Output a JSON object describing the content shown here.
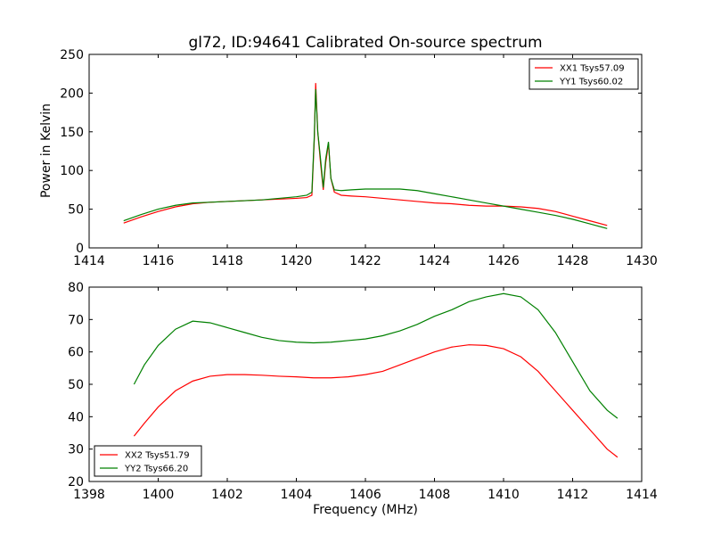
{
  "chart_data": [
    {
      "type": "line",
      "title": "gl72, ID:94641 Calibrated On-source spectrum",
      "xlabel": "",
      "ylabel": "Power in Kelvin",
      "xlim": [
        1414,
        1430
      ],
      "ylim": [
        0,
        250
      ],
      "xticks": [
        1414,
        1416,
        1418,
        1420,
        1422,
        1424,
        1426,
        1428,
        1430
      ],
      "yticks": [
        0,
        50,
        100,
        150,
        200,
        250
      ],
      "legend_position": "top-right",
      "series": [
        {
          "name": "XX1 Tsys57.09",
          "color": "#ff0000",
          "x": [
            1415.0,
            1415.5,
            1416.0,
            1416.5,
            1417.0,
            1417.5,
            1418.0,
            1418.5,
            1419.0,
            1419.5,
            1420.0,
            1420.3,
            1420.45,
            1420.52,
            1420.56,
            1420.62,
            1420.7,
            1420.78,
            1420.85,
            1420.93,
            1421.0,
            1421.1,
            1421.3,
            1421.6,
            1422.0,
            1422.5,
            1423.0,
            1423.5,
            1424.0,
            1424.5,
            1425.0,
            1425.5,
            1426.0,
            1426.5,
            1427.0,
            1427.5,
            1428.0,
            1428.5,
            1429.0
          ],
          "y": [
            32,
            40,
            47,
            53,
            57,
            59,
            60,
            61,
            62,
            63,
            64,
            65,
            68,
            140,
            213,
            150,
            110,
            75,
            110,
            135,
            90,
            72,
            68,
            67,
            66,
            64,
            62,
            60,
            58,
            57,
            55,
            54,
            54,
            53,
            51,
            47,
            41,
            35,
            29
          ]
        },
        {
          "name": "YY1 Tsys60.02",
          "color": "#008000",
          "x": [
            1415.0,
            1415.5,
            1416.0,
            1416.5,
            1417.0,
            1417.5,
            1418.0,
            1418.5,
            1419.0,
            1419.5,
            1420.0,
            1420.3,
            1420.45,
            1420.52,
            1420.56,
            1420.62,
            1420.7,
            1420.78,
            1420.85,
            1420.93,
            1421.0,
            1421.1,
            1421.3,
            1421.6,
            1422.0,
            1422.5,
            1423.0,
            1423.5,
            1424.0,
            1424.5,
            1425.0,
            1425.5,
            1426.0,
            1426.5,
            1427.0,
            1427.5,
            1428.0,
            1428.5,
            1429.0
          ],
          "y": [
            35,
            43,
            50,
            55,
            58,
            59,
            60,
            61,
            62,
            64,
            66,
            68,
            72,
            145,
            205,
            150,
            115,
            78,
            115,
            137,
            90,
            75,
            74,
            75,
            76,
            76,
            76,
            74,
            70,
            66,
            62,
            58,
            54,
            50,
            46,
            42,
            37,
            31,
            25
          ]
        }
      ]
    },
    {
      "type": "line",
      "title": "",
      "xlabel": "Frequency (MHz)",
      "ylabel": "",
      "xlim": [
        1398,
        1414
      ],
      "ylim": [
        20,
        80
      ],
      "xticks": [
        1398,
        1400,
        1402,
        1404,
        1406,
        1408,
        1410,
        1412,
        1414
      ],
      "yticks": [
        20,
        30,
        40,
        50,
        60,
        70,
        80
      ],
      "legend_position": "bottom-left",
      "series": [
        {
          "name": "XX2 Tsys51.79",
          "color": "#ff0000",
          "x": [
            1399.3,
            1399.6,
            1400.0,
            1400.5,
            1401.0,
            1401.5,
            1402.0,
            1402.5,
            1403.0,
            1403.5,
            1404.0,
            1404.5,
            1405.0,
            1405.5,
            1406.0,
            1406.5,
            1407.0,
            1407.5,
            1408.0,
            1408.5,
            1409.0,
            1409.5,
            1410.0,
            1410.5,
            1411.0,
            1411.5,
            1412.0,
            1412.5,
            1413.0,
            1413.3
          ],
          "y": [
            34,
            38,
            43,
            48,
            51,
            52.5,
            53,
            53,
            52.8,
            52.5,
            52.3,
            52,
            52,
            52.3,
            53,
            54,
            56,
            58,
            60,
            61.5,
            62.2,
            62,
            61,
            58.5,
            54,
            48,
            42,
            36,
            30,
            27.5
          ]
        },
        {
          "name": "YY2 Tsys66.20",
          "color": "#008000",
          "x": [
            1399.3,
            1399.6,
            1400.0,
            1400.5,
            1401.0,
            1401.5,
            1402.0,
            1402.5,
            1403.0,
            1403.5,
            1404.0,
            1404.5,
            1405.0,
            1405.5,
            1406.0,
            1406.5,
            1407.0,
            1407.5,
            1408.0,
            1408.5,
            1409.0,
            1409.5,
            1410.0,
            1410.5,
            1411.0,
            1411.5,
            1412.0,
            1412.5,
            1413.0,
            1413.3
          ],
          "y": [
            50,
            56,
            62,
            67,
            69.5,
            69,
            67.5,
            66,
            64.5,
            63.5,
            63,
            62.8,
            63,
            63.5,
            64,
            65,
            66.5,
            68.5,
            71,
            73,
            75.5,
            77,
            78,
            77,
            73,
            66,
            57,
            48,
            42,
            39.5
          ]
        }
      ]
    }
  ]
}
